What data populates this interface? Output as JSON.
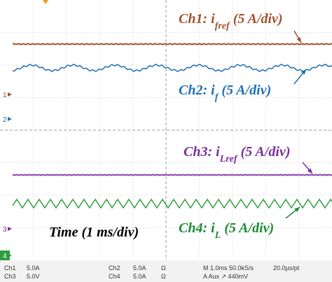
{
  "annotations": [
    {
      "prefix": "Ch1: i",
      "sub": "fref",
      "suffix": " (5 A/div)"
    },
    {
      "prefix": "Ch2: i",
      "sub": "f",
      "suffix": " (5 A/div)"
    },
    {
      "prefix": "Ch3: i",
      "sub": "Lref",
      "suffix": " (5 A/div)"
    },
    {
      "prefix": "Ch4: i",
      "sub": "L",
      "suffix": " (5 A/div)"
    }
  ],
  "time_label": "Time (1 ms/div)",
  "channel_markers": [
    "1",
    "2",
    "3",
    "4"
  ],
  "status_bar": {
    "row1": [
      "Ch1",
      "5.0A",
      "Ch2",
      "5.0A",
      "Ω",
      "M 1.0ms 50.0kS/s",
      "20.0µs/pt"
    ],
    "row2": [
      "Ch3",
      "5.0V",
      "Ch4",
      "5.0A",
      "Ω",
      "A Aux ↗ 440mV"
    ]
  }
}
